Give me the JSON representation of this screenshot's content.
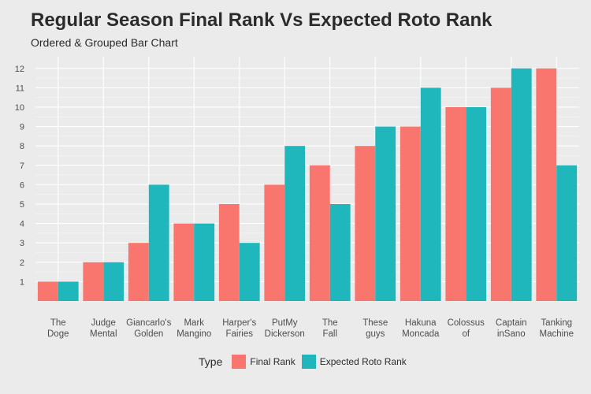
{
  "chart_data": {
    "type": "bar",
    "title": "Regular Season Final Rank Vs Expected Roto Rank",
    "subtitle": "Ordered & Grouped Bar Chart",
    "categories": [
      [
        "The",
        "Doge"
      ],
      [
        "Judge",
        "Mental"
      ],
      [
        "Giancarlo's",
        "Golden"
      ],
      [
        "Mark",
        "Mangino"
      ],
      [
        "Harper's",
        "Fairies"
      ],
      [
        "PutMy",
        "Dickerson"
      ],
      [
        "The",
        "Fall"
      ],
      [
        "These",
        "guys"
      ],
      [
        "Hakuna",
        "Moncada"
      ],
      [
        "Colossus",
        "of"
      ],
      [
        "Captain",
        "inSano"
      ],
      [
        "Tanking",
        "Machine"
      ]
    ],
    "series": [
      {
        "name": "Final Rank",
        "color": "#f8766d",
        "values": [
          1,
          2,
          3,
          4,
          5,
          6,
          7,
          8,
          9,
          10,
          11,
          12
        ]
      },
      {
        "name": "Expected Roto Rank",
        "color": "#1fb6bc",
        "values": [
          1,
          2,
          6,
          4,
          3,
          8,
          5,
          9,
          11,
          10,
          12,
          7
        ]
      }
    ],
    "yticks": [
      1,
      2,
      3,
      4,
      5,
      6,
      7,
      8,
      9,
      10,
      11,
      12
    ],
    "ylim": [
      0,
      12.6
    ],
    "xlabel": "",
    "ylabel": "",
    "grid": true,
    "legend": {
      "title": "Type",
      "position": "bottom"
    }
  }
}
